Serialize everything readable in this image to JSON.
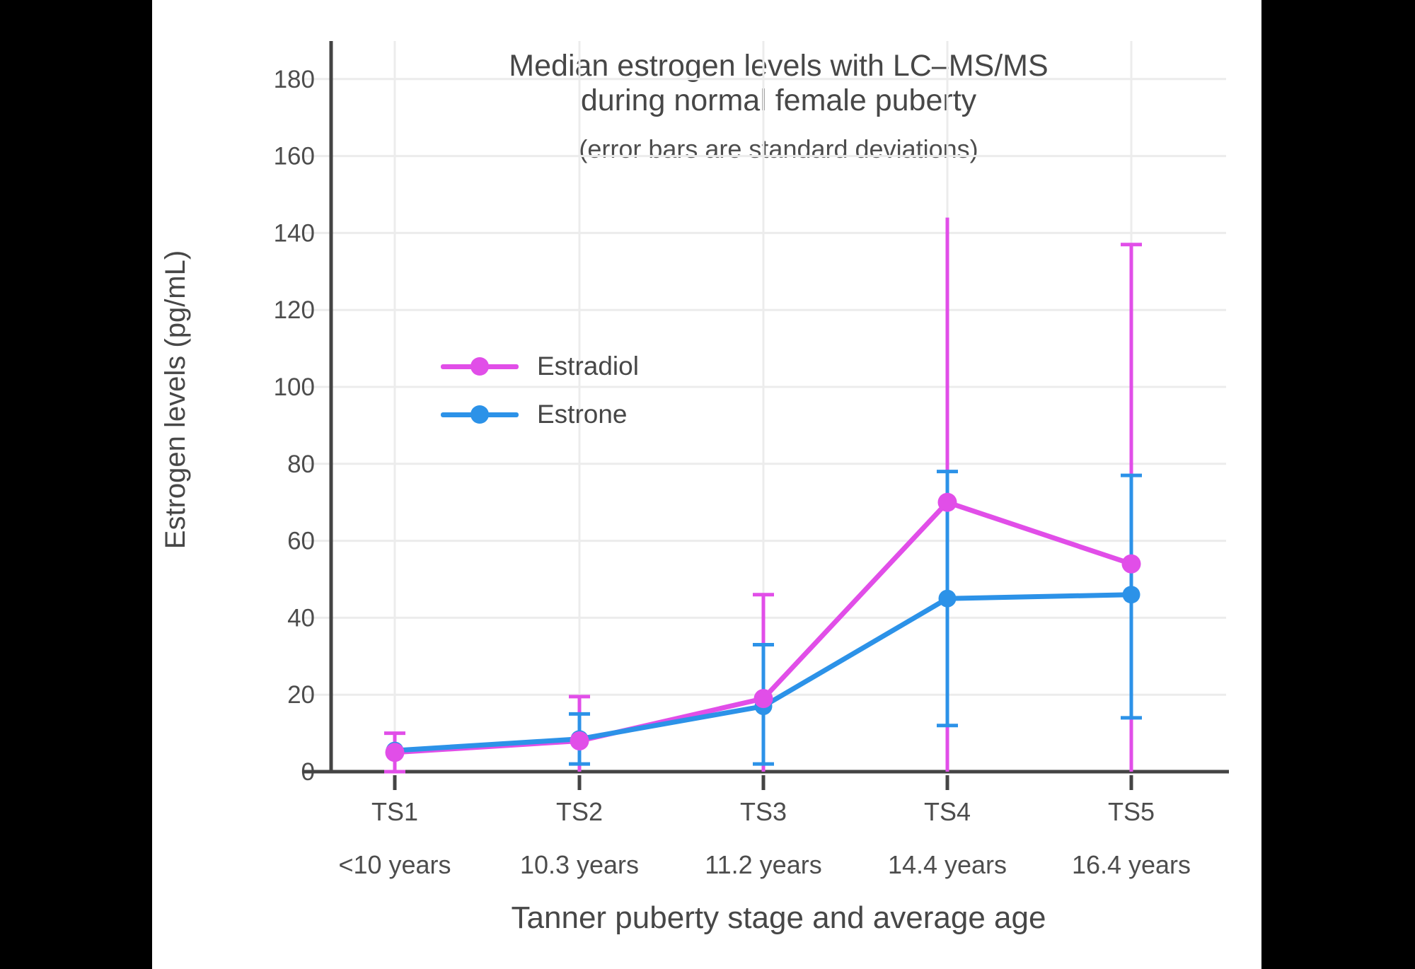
{
  "chart_data": {
    "type": "line",
    "title_line1": "Median estrogen levels with LC–MS/MS",
    "title_line2": "during normal female puberty",
    "subtitle": "(error bars are standard deviations)",
    "xlabel": "Tanner puberty stage and average age",
    "ylabel": "Estrogen levels (pg/mL)",
    "categories": [
      "TS1",
      "TS2",
      "TS3",
      "TS4",
      "TS5"
    ],
    "category_ages": [
      "<10 years",
      "10.3 years",
      "11.2 years",
      "14.4 years",
      "16.4 years"
    ],
    "y_ticks": [
      0,
      20,
      40,
      60,
      80,
      100,
      120,
      140,
      160,
      180
    ],
    "ylim": [
      0,
      190
    ],
    "grid": true,
    "legend_position": "inside-left-middle",
    "colors": {
      "estradiol": "#E14EE8",
      "estrone": "#2C92E8",
      "grid": "#ECECEC",
      "axis": "#444444",
      "text": "#4D4D4D"
    },
    "series": [
      {
        "name": "Estradiol",
        "color": "#E14EE8",
        "values": [
          5,
          8,
          19,
          70,
          54
        ],
        "error_hi": [
          10,
          19.5,
          46,
          144,
          137
        ],
        "error_lo": [
          0,
          0,
          0,
          0,
          0
        ],
        "cap_hi": [
          true,
          true,
          true,
          false,
          true
        ],
        "cap_lo": [
          true,
          false,
          false,
          false,
          false
        ]
      },
      {
        "name": "Estrone",
        "color": "#2C92E8",
        "values": [
          5.5,
          8.5,
          17,
          45,
          46
        ],
        "error_hi": [
          null,
          15,
          33,
          78,
          77
        ],
        "error_lo": [
          null,
          2,
          2,
          12,
          14
        ],
        "cap_hi": [
          false,
          true,
          true,
          true,
          true
        ],
        "cap_lo": [
          false,
          true,
          true,
          true,
          true
        ]
      }
    ]
  }
}
